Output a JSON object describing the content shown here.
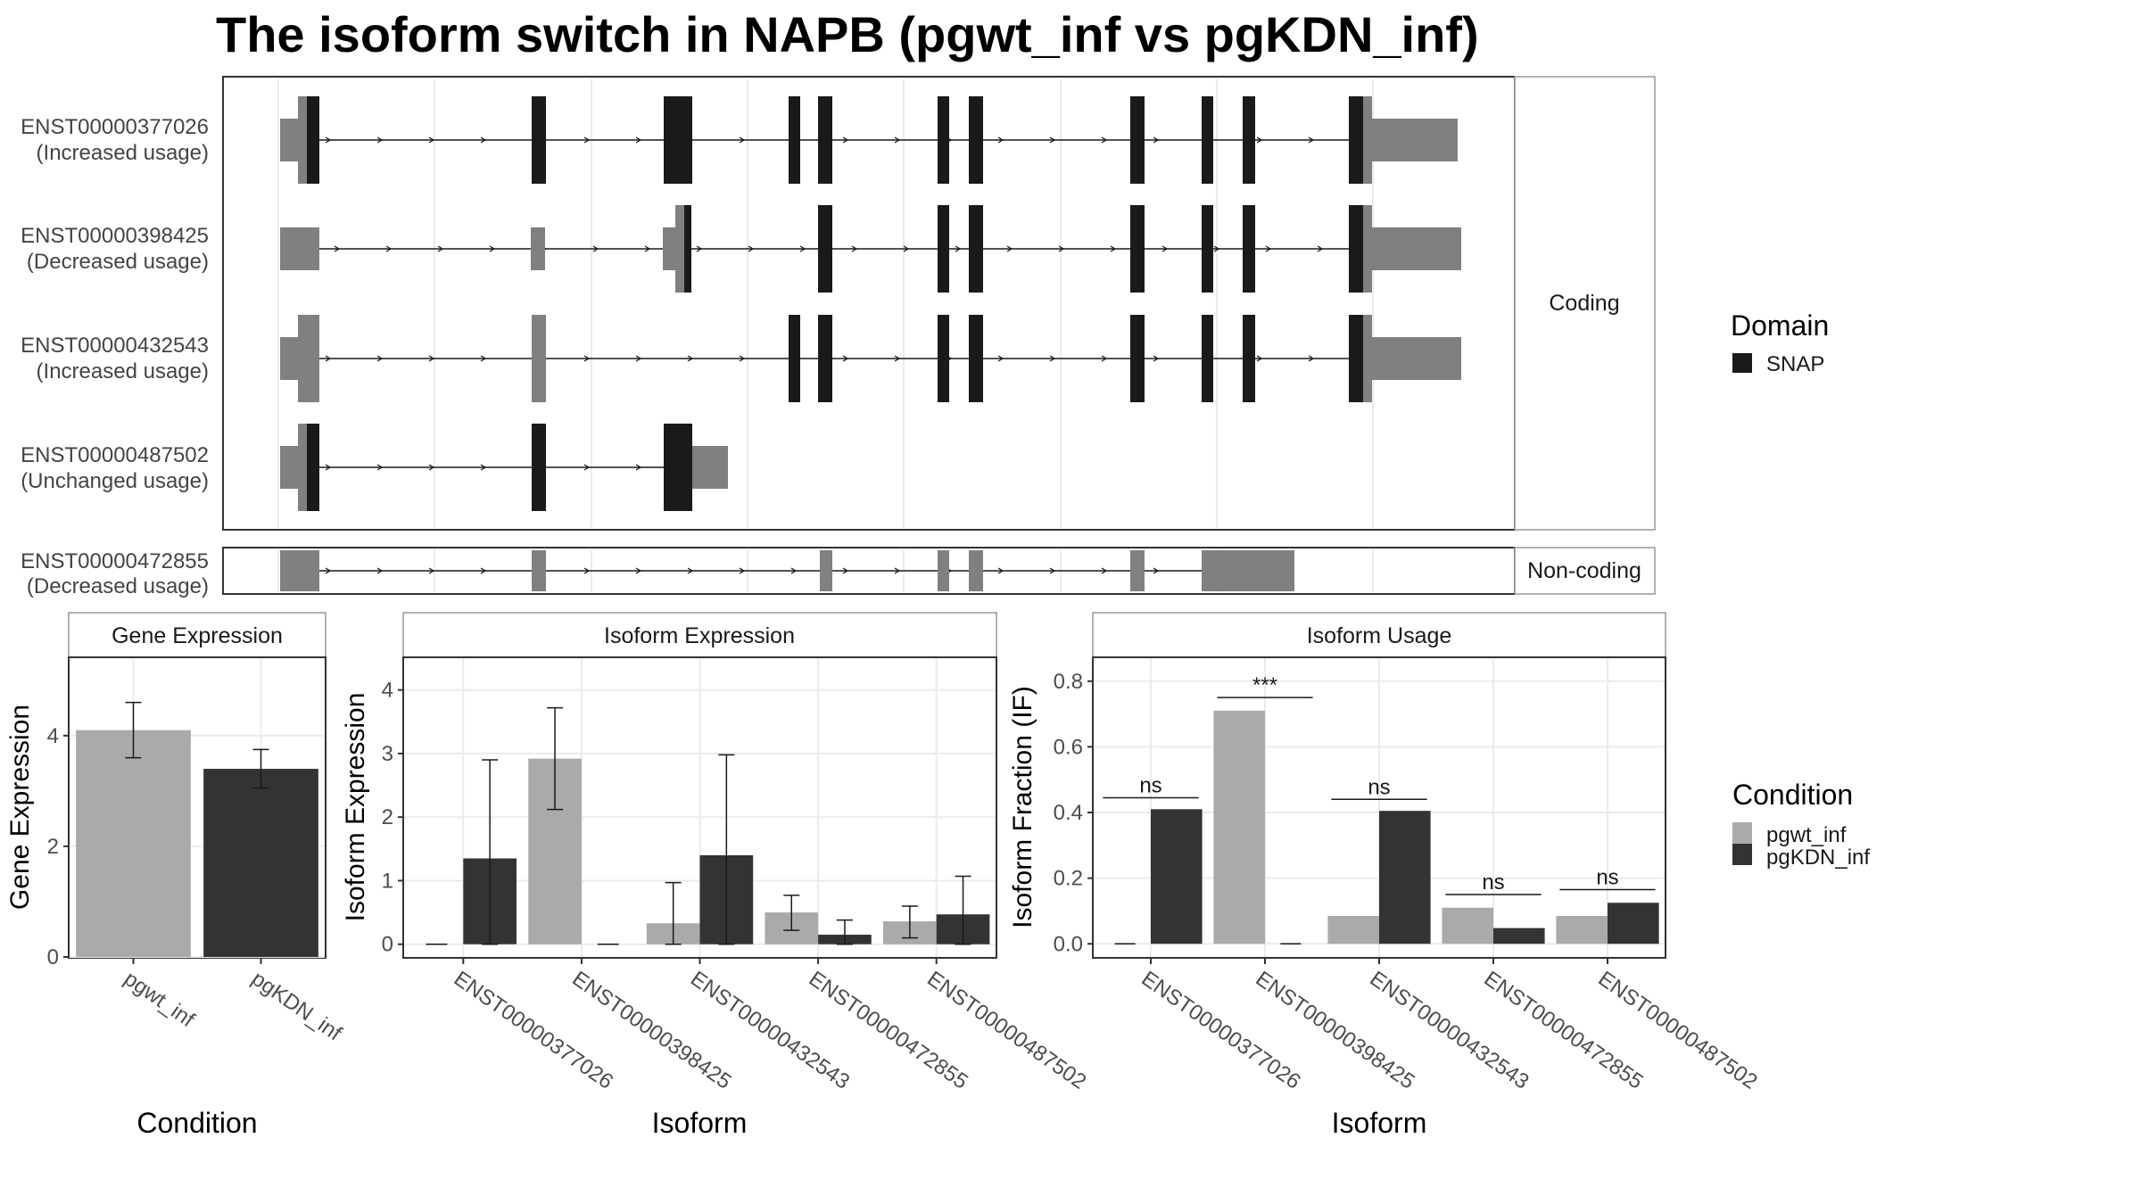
{
  "title": "The isoform switch in NAPB (pgwt_inf vs pgKDN_inf)",
  "structure": {
    "coding_strip": "Coding",
    "noncoding_strip": "Non-coding",
    "rows": [
      {
        "id": "ENST00000377026",
        "usage": "(Increased usage)",
        "group": "coding"
      },
      {
        "id": "ENST00000398425",
        "usage": "(Decreased usage)",
        "group": "coding"
      },
      {
        "id": "ENST00000432543",
        "usage": "(Increased usage)",
        "group": "coding"
      },
      {
        "id": "ENST00000487502",
        "usage": "(Unchanged usage)",
        "group": "coding"
      },
      {
        "id": "ENST00000472855",
        "usage": "(Decreased usage)",
        "group": "noncoding"
      }
    ]
  },
  "legend_domain": {
    "title": "Domain",
    "items": [
      {
        "label": "SNAP",
        "color": "#1a1a1a"
      }
    ]
  },
  "legend_condition": {
    "title": "Condition",
    "items": [
      {
        "label": "pgwt_inf",
        "color": "#aaaaaa"
      },
      {
        "label": "pgKDN_inf",
        "color": "#333333"
      }
    ]
  },
  "chart_data": [
    {
      "type": "bar",
      "panel": "Gene Expression",
      "xlabel": "Condition",
      "ylabel": "Gene Expression",
      "categories": [
        "pgwt_inf",
        "pgKDN_inf"
      ],
      "values": [
        4.1,
        3.4
      ],
      "error_low": [
        3.6,
        3.05
      ],
      "error_high": [
        4.6,
        3.75
      ],
      "colors": [
        "#aaaaaa",
        "#333333"
      ],
      "ylim": [
        0,
        5.4
      ],
      "yticks": [
        0,
        2,
        4
      ],
      "grid": true
    },
    {
      "type": "bar",
      "panel": "Isoform Expression",
      "xlabel": "Isoform",
      "ylabel": "Isoform Expression",
      "categories": [
        "ENST00000377026",
        "ENST00000398425",
        "ENST00000432543",
        "ENST00000472855",
        "ENST00000487502"
      ],
      "series": [
        {
          "name": "pgwt_inf",
          "color": "#aaaaaa",
          "values": [
            0.0,
            2.92,
            0.33,
            0.5,
            0.36
          ],
          "error_low": [
            0.0,
            2.12,
            0.0,
            0.22,
            0.1
          ],
          "error_high": [
            0.0,
            3.72,
            0.97,
            0.77,
            0.6
          ]
        },
        {
          "name": "pgKDN_inf",
          "color": "#333333",
          "values": [
            1.35,
            0.0,
            1.4,
            0.15,
            0.47
          ],
          "error_low": [
            0.0,
            0.0,
            0.0,
            0.0,
            0.0
          ],
          "error_high": [
            2.9,
            0.0,
            2.98,
            0.38,
            1.07
          ]
        }
      ],
      "ylim": [
        -0.2,
        4.5
      ],
      "yticks": [
        0,
        1,
        2,
        3,
        4
      ],
      "grid": true
    },
    {
      "type": "bar",
      "panel": "Isoform Usage",
      "xlabel": "Isoform",
      "ylabel": "Isoform Fraction (IF)",
      "categories": [
        "ENST00000377026",
        "ENST00000398425",
        "ENST00000432543",
        "ENST00000472855",
        "ENST00000487502"
      ],
      "series": [
        {
          "name": "pgwt_inf",
          "color": "#aaaaaa",
          "values": [
            0.0,
            0.71,
            0.085,
            0.11,
            0.085
          ]
        },
        {
          "name": "pgKDN_inf",
          "color": "#333333",
          "values": [
            0.41,
            0.0,
            0.405,
            0.048,
            0.125
          ]
        }
      ],
      "annotations": [
        {
          "label": "ns",
          "y": 0.445
        },
        {
          "label": "***",
          "y": 0.75
        },
        {
          "label": "ns",
          "y": 0.44
        },
        {
          "label": "ns",
          "y": 0.15
        },
        {
          "label": "ns",
          "y": 0.165
        }
      ],
      "ylim": [
        -0.04,
        0.87
      ],
      "yticks": [
        0.0,
        0.2,
        0.4,
        0.6,
        0.8
      ],
      "ytick_labels": [
        "0.0",
        "0.2",
        "0.4",
        "0.6",
        "0.8"
      ],
      "grid": true
    }
  ]
}
